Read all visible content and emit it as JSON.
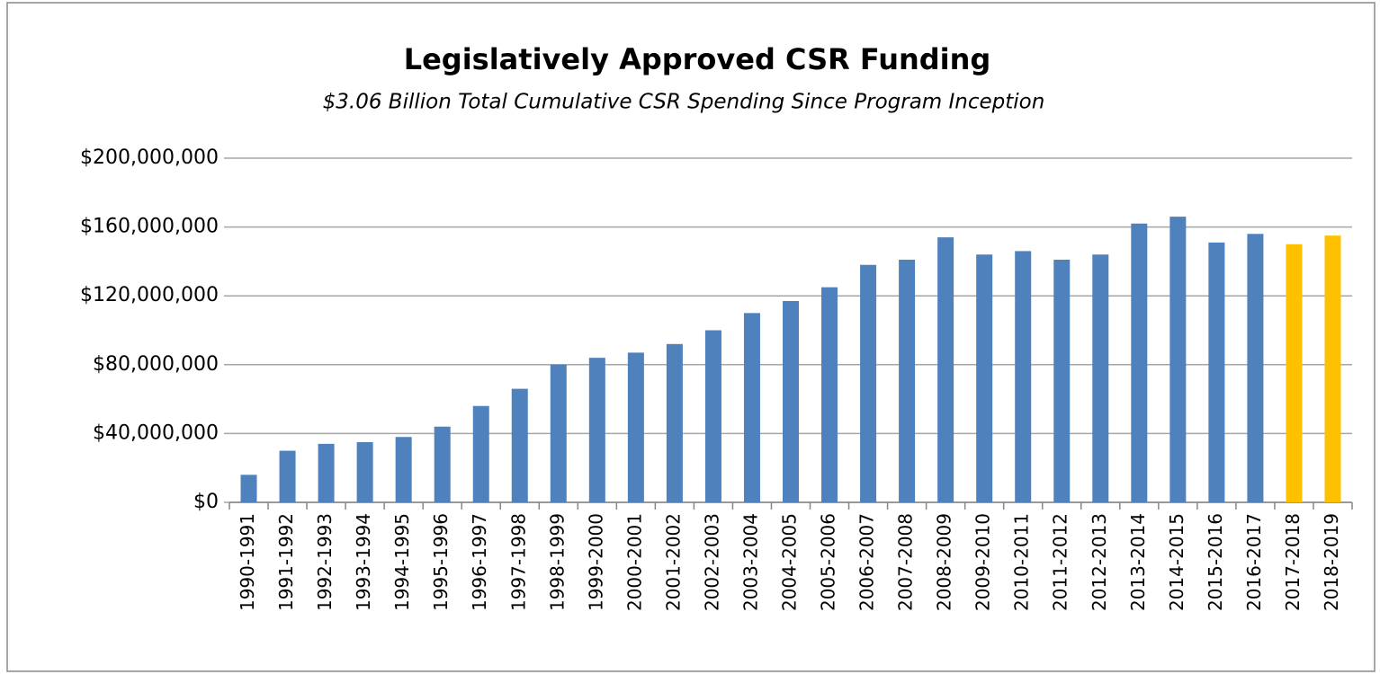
{
  "chart_data": {
    "type": "bar",
    "title": "Legislatively Approved CSR Funding",
    "subtitle": "$3.06 Billion Total Cumulative CSR Spending Since Program Inception",
    "categories": [
      "1990-1991",
      "1991-1992",
      "1992-1993",
      "1993-1994",
      "1994-1995",
      "1995-1996",
      "1996-1997",
      "1997-1998",
      "1998-1999",
      "1999-2000",
      "2000-2001",
      "2001-2002",
      "2002-2003",
      "2003-2004",
      "2004-2005",
      "2005-2006",
      "2006-2007",
      "2007-2008",
      "2008-2009",
      "2009-2010",
      "2010-2011",
      "2011-2012",
      "2012-2013",
      "2013-2014",
      "2014-2015",
      "2015-2016",
      "2016-2017",
      "2017-2018",
      "2018-2019"
    ],
    "values": [
      16000000,
      30000000,
      34000000,
      35000000,
      38000000,
      44000000,
      56000000,
      66000000,
      80000000,
      84000000,
      87000000,
      92000000,
      100000000,
      110000000,
      117000000,
      125000000,
      138000000,
      141000000,
      154000000,
      144000000,
      146000000,
      141000000,
      144000000,
      162000000,
      166000000,
      151000000,
      156000000,
      150000000,
      155000000
    ],
    "colors": [
      "#4f81bd",
      "#4f81bd",
      "#4f81bd",
      "#4f81bd",
      "#4f81bd",
      "#4f81bd",
      "#4f81bd",
      "#4f81bd",
      "#4f81bd",
      "#4f81bd",
      "#4f81bd",
      "#4f81bd",
      "#4f81bd",
      "#4f81bd",
      "#4f81bd",
      "#4f81bd",
      "#4f81bd",
      "#4f81bd",
      "#4f81bd",
      "#4f81bd",
      "#4f81bd",
      "#4f81bd",
      "#4f81bd",
      "#4f81bd",
      "#4f81bd",
      "#4f81bd",
      "#4f81bd",
      "#ffc000",
      "#ffc000"
    ],
    "ylim": [
      0,
      200000000
    ],
    "yticks": [
      {
        "value": 0,
        "label": "$0"
      },
      {
        "value": 40000000,
        "label": "$40,000,000"
      },
      {
        "value": 80000000,
        "label": "$80,000,000"
      },
      {
        "value": 120000000,
        "label": "$120,000,000"
      },
      {
        "value": 160000000,
        "label": "$160,000,000"
      },
      {
        "value": 200000000,
        "label": "$200,000,000"
      }
    ],
    "grid": true
  }
}
